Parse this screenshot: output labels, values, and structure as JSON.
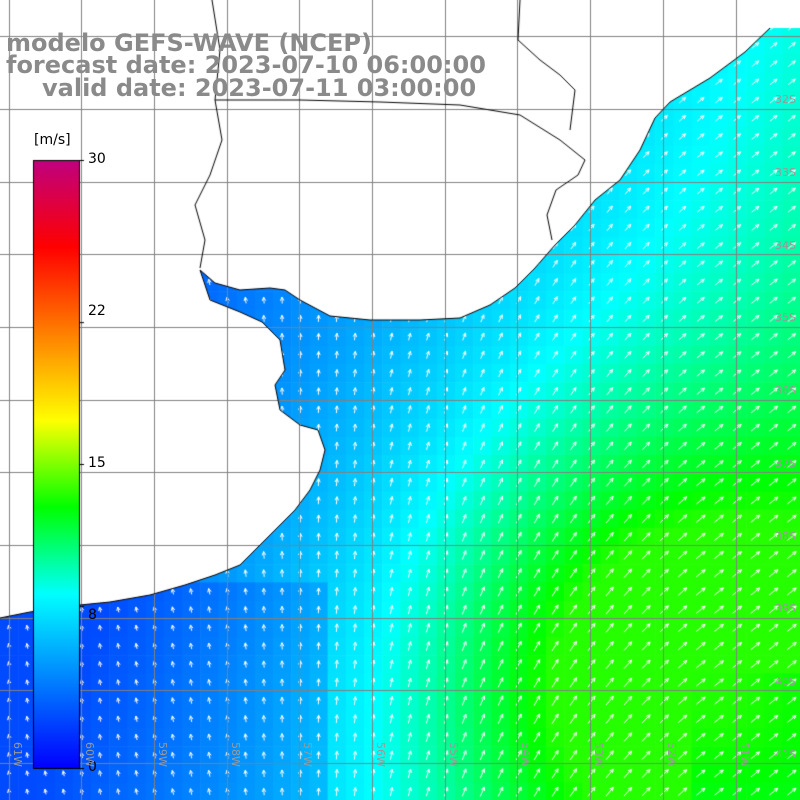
{
  "title": {
    "line1": "modelo GEFS-WAVE (NCEP)",
    "line2": "forecast date: 2023-07-10 06:00:00",
    "line3": "valid date: 2023-07-11 03:00:00"
  },
  "legend": {
    "unit": "[m/s]",
    "ticks": [
      {
        "label": "30",
        "value": 30
      },
      {
        "label": "22",
        "value": 22
      },
      {
        "label": "15",
        "value": 15
      },
      {
        "label": "8",
        "value": 8
      },
      {
        "label": "0",
        "value": 0
      }
    ],
    "range": [
      0,
      30
    ],
    "colormap": [
      "#0000ff",
      "#0080ff",
      "#00ffff",
      "#00ff00",
      "#ffff00",
      "#ff8000",
      "#ff0000",
      "#c0007f"
    ]
  },
  "grid": {
    "lat_labels": [
      "32S",
      "33S",
      "34S",
      "35S",
      "36S",
      "37S",
      "38S",
      "39S",
      "40S",
      "41S"
    ],
    "lon_labels": [
      "61W",
      "60W",
      "59W",
      "58W",
      "57W",
      "56W",
      "55W",
      "54W",
      "53W",
      "52W",
      "51W"
    ]
  },
  "colors": {
    "land": "#ffffff",
    "coast": "#000000",
    "gridlines": "#808080",
    "arrows": "#ffffff",
    "title": "#8a8a8a"
  }
}
